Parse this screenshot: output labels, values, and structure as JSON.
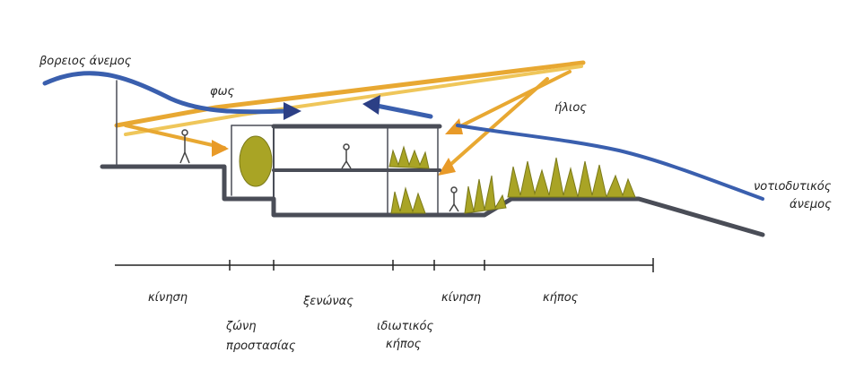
{
  "labels": {
    "north_wind": "βορειος άνεμος",
    "light": "φως",
    "sun": "ήλιος",
    "southwest_wind_1": "νοτιοδυτικός",
    "southwest_wind_2": "άνεμος"
  },
  "zones": {
    "movement_1": "κίνηση",
    "protection_1": "ζώνη",
    "protection_2": "προστασίας",
    "rooms": "ξενώνας",
    "private_garden_1": "ιδιωτικός",
    "private_garden_2": "κήπος",
    "movement_2": "κίνηση",
    "garden": "κήπος"
  },
  "colors": {
    "wind": "#3a5fae",
    "sun": "#e8a832",
    "ground": "#4a4d57",
    "plants": "#a9a425"
  }
}
